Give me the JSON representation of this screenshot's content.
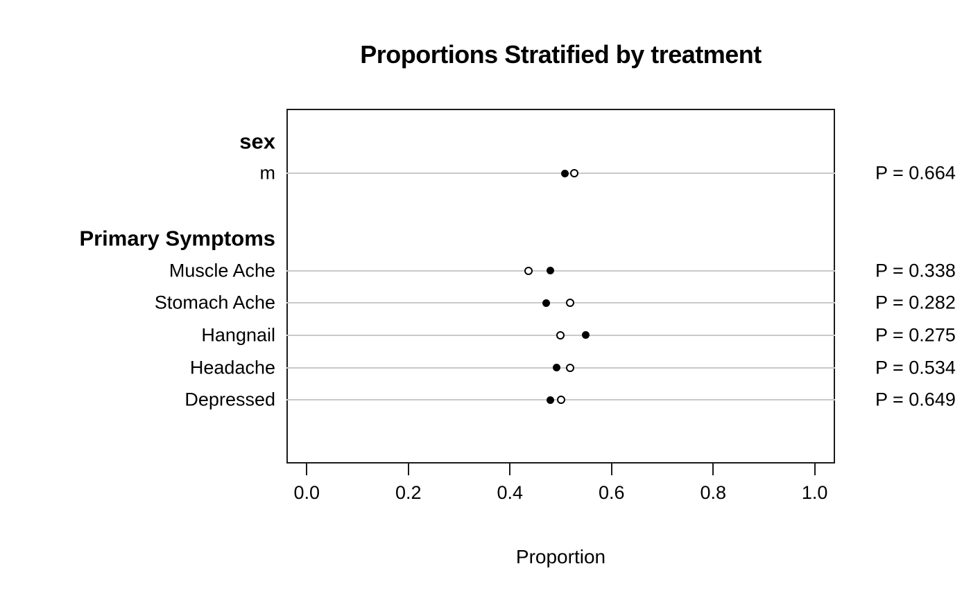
{
  "chart_data": {
    "type": "scatter",
    "title": "Proportions Stratified by treatment",
    "xlabel": "Proportion",
    "xlim": [
      0,
      1
    ],
    "xticks": [
      {
        "value": 0.0,
        "label": "0.0"
      },
      {
        "value": 0.2,
        "label": "0.2"
      },
      {
        "value": 0.4,
        "label": "0.4"
      },
      {
        "value": 0.6,
        "label": "0.6"
      },
      {
        "value": 0.8,
        "label": "0.8"
      },
      {
        "value": 1.0,
        "label": "1.0"
      }
    ],
    "grid": true,
    "legend_position": "none",
    "colors": {
      "filled_dot": "#000000",
      "open_dot_stroke": "#000000",
      "open_dot_fill": "#ffffff",
      "gridline": "#c9c9c9",
      "box_border": "#1a1a1a",
      "text": "#000000",
      "background": "#ffffff"
    },
    "groups": [
      {
        "header": "sex",
        "rows": [
          {
            "label": "m",
            "filled": 0.508,
            "open": 0.527,
            "p_label": "P = 0.664"
          }
        ]
      },
      {
        "header": "Primary Symptoms",
        "rows": [
          {
            "label": "Muscle Ache",
            "filled": 0.479,
            "open": 0.437,
            "p_label": "P = 0.338"
          },
          {
            "label": "Stomach Ache",
            "filled": 0.471,
            "open": 0.519,
            "p_label": "P = 0.282"
          },
          {
            "label": "Hangnail",
            "filled": 0.549,
            "open": 0.499,
            "p_label": "P = 0.275"
          },
          {
            "label": "Headache",
            "filled": 0.492,
            "open": 0.519,
            "p_label": "P = 0.534"
          },
          {
            "label": "Depressed",
            "filled": 0.479,
            "open": 0.5,
            "p_label": "P = 0.649"
          }
        ]
      }
    ]
  }
}
